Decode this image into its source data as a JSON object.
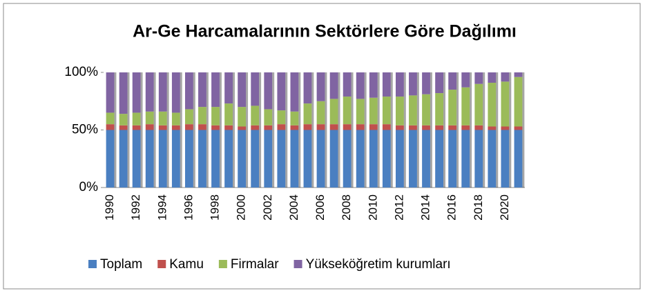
{
  "chart_data": {
    "type": "bar",
    "stacked": true,
    "title": "Ar-Ge Harcamalarının Sektörlere Göre Dağılımı",
    "categories": [
      "1990",
      null,
      "1992",
      null,
      "1994",
      null,
      "1996",
      null,
      "1998",
      null,
      "2000",
      null,
      "2002",
      null,
      "2004",
      null,
      "2006",
      null,
      "2008",
      null,
      "2010",
      null,
      "2012",
      null,
      "2014",
      null,
      "2016",
      null,
      "2018",
      null,
      "2020",
      null
    ],
    "series": [
      {
        "name": "Toplam",
        "color": "#4a7fc1",
        "values": [
          50,
          50,
          50,
          50,
          50,
          50,
          50,
          50,
          50,
          50,
          50,
          50,
          50,
          50,
          50,
          50,
          50,
          50,
          50,
          50,
          50,
          50,
          50,
          50,
          50,
          50,
          50,
          50,
          50,
          50,
          50,
          50
        ]
      },
      {
        "name": "Kamu",
        "color": "#c0504d",
        "values": [
          5,
          4,
          4,
          5,
          4,
          4,
          5,
          5,
          4,
          4,
          3,
          4,
          4,
          5,
          4,
          5,
          5,
          5,
          5,
          5,
          5,
          5,
          4,
          4,
          4,
          4,
          4,
          4,
          4,
          3,
          3,
          3
        ]
      },
      {
        "name": "Firmalar",
        "color": "#9bbb59",
        "values": [
          10,
          10,
          11,
          11,
          12,
          11,
          13,
          15,
          16,
          19,
          17,
          17,
          14,
          12,
          12,
          18,
          20,
          22,
          24,
          22,
          23,
          24,
          25,
          26,
          27,
          28,
          31,
          33,
          36,
          38,
          39,
          43
        ]
      },
      {
        "name": "Yükseköğretim kurumları",
        "color": "#8064a2",
        "values": [
          35,
          36,
          35,
          34,
          34,
          35,
          32,
          30,
          30,
          27,
          30,
          29,
          32,
          33,
          34,
          27,
          25,
          23,
          21,
          23,
          22,
          21,
          21,
          20,
          19,
          18,
          15,
          13,
          10,
          9,
          8,
          4
        ]
      }
    ],
    "ylim": [
      0,
      100
    ],
    "yticks": [
      {
        "value": 0,
        "label": "0%"
      },
      {
        "value": 50,
        "label": "50%"
      },
      {
        "value": 100,
        "label": "100%"
      }
    ],
    "legend": "bottom"
  }
}
